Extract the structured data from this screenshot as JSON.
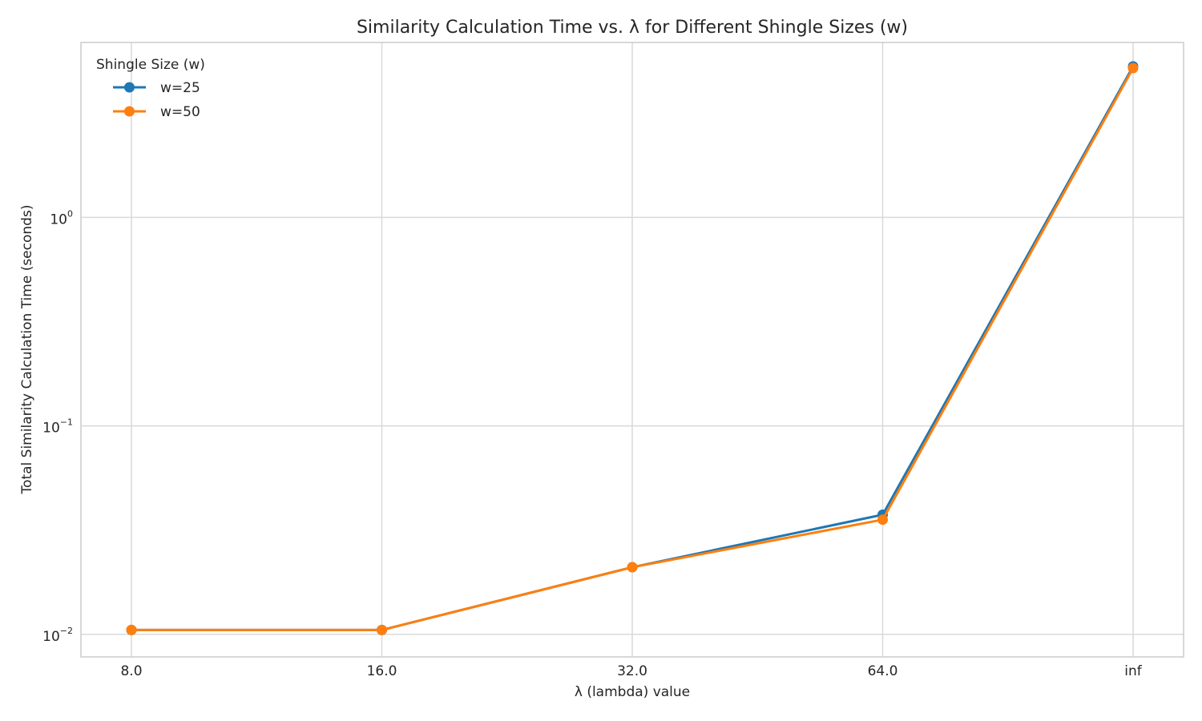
{
  "chart_data": {
    "type": "line",
    "title": "Similarity Calculation Time vs. λ for Different Shingle Sizes (w)",
    "xlabel": "λ (lambda) value",
    "ylabel": "Total Similarity Calculation Time (seconds)",
    "categories": [
      "8.0",
      "16.0",
      "32.0",
      "64.0",
      "inf"
    ],
    "y_scale": "log",
    "ylim": [
      0.0078,
      6.9
    ],
    "y_ticks": [
      {
        "value": 0.01,
        "base": "10",
        "exp": "−2"
      },
      {
        "value": 0.1,
        "base": "10",
        "exp": "−1"
      },
      {
        "value": 1,
        "base": "10",
        "exp": "0"
      }
    ],
    "grid": true,
    "legend": {
      "title": "Shingle Size (w)",
      "placement": "top-left"
    },
    "series": [
      {
        "name": "w=25",
        "color": "#1f77b4",
        "values": [
          0.0105,
          0.0105,
          0.021,
          0.0375,
          5.3
        ]
      },
      {
        "name": "w=50",
        "color": "#ff7f0e",
        "values": [
          0.0105,
          0.0105,
          0.021,
          0.0355,
          5.2
        ]
      }
    ]
  }
}
